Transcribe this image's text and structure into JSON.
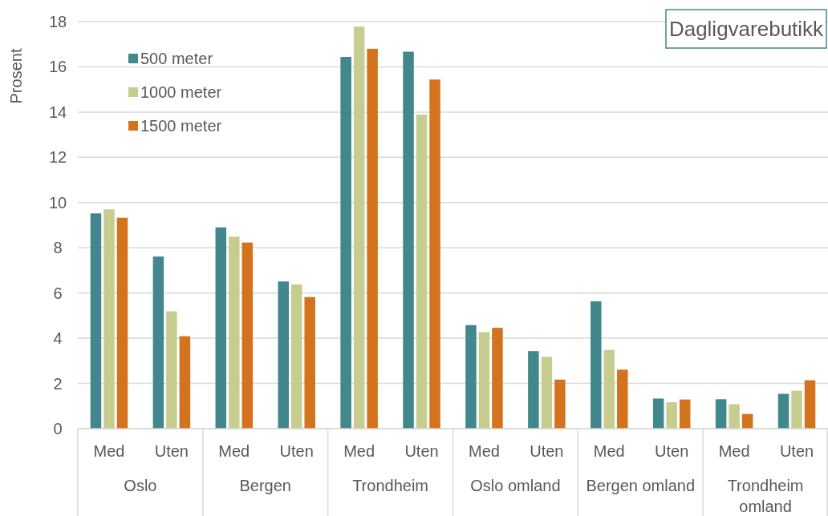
{
  "chart_data": {
    "type": "bar",
    "title": "Dagligvarebutikk",
    "ylabel": "Prosent",
    "categories": [
      "Med",
      "Uten",
      "Med",
      "Uten",
      "Med",
      "Uten",
      "Med",
      "Uten",
      "Med",
      "Uten",
      "Med",
      "Uten"
    ],
    "annotations": [
      "Oslo",
      "Bergen",
      "Trondheim",
      "Oslo omland",
      "Bergen omland",
      "Trondheim omland"
    ],
    "series": [
      {
        "name": "500 meter",
        "color": "#41878b",
        "values": [
          9.52,
          7.61,
          8.9,
          6.51,
          16.44,
          16.67,
          4.58,
          3.43,
          5.63,
          1.33,
          1.3,
          1.54
        ]
      },
      {
        "name": "1000 meter",
        "color": "#c7cd8f",
        "values": [
          9.7,
          5.19,
          8.49,
          6.38,
          17.78,
          13.89,
          4.27,
          3.18,
          3.48,
          1.17,
          1.08,
          1.68
        ]
      },
      {
        "name": "1500 meter",
        "color": "#d4731d",
        "values": [
          9.33,
          4.09,
          8.23,
          5.82,
          16.8,
          15.44,
          4.46,
          2.17,
          2.61,
          1.29,
          0.65,
          2.14
        ]
      }
    ],
    "ylim": [
      0,
      18
    ],
    "yticks": [
      0,
      2,
      4,
      6,
      8,
      10,
      12,
      14,
      16,
      18
    ],
    "grid": "y",
    "legend": "top left"
  }
}
